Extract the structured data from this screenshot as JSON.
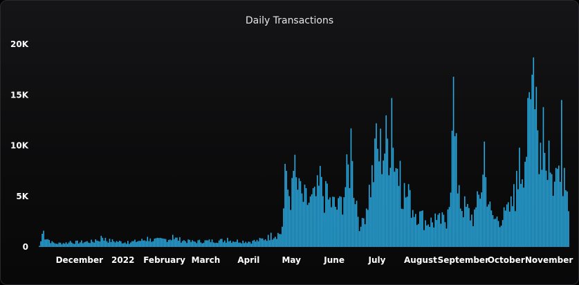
{
  "chart_data": {
    "type": "bar",
    "title": "Daily Transactions",
    "xlabel": "",
    "ylabel": "",
    "ylim": [
      0,
      20000
    ],
    "grid": false,
    "legend": "none",
    "bar_color": "#29a9e0",
    "y_ticks": [
      {
        "value": 0,
        "label": "0"
      },
      {
        "value": 5000,
        "label": "5K"
      },
      {
        "value": 10000,
        "label": "10K"
      },
      {
        "value": 15000,
        "label": "15K"
      },
      {
        "value": 20000,
        "label": "20K"
      }
    ],
    "x_ticks": [
      "December",
      "2022",
      "February",
      "March",
      "April",
      "May",
      "June",
      "July",
      "August",
      "September",
      "October",
      "November"
    ],
    "x_start": "2021-11-18",
    "x_end": "2022-11-30",
    "series": [
      {
        "points": [
          [
            "2021-11-20",
            1300
          ],
          [
            "2021-11-21",
            1600
          ],
          [
            "2021-11-28",
            450
          ],
          [
            "2021-12-10",
            600
          ],
          [
            "2021-12-28",
            750
          ],
          [
            "2022-01-01",
            1100
          ],
          [
            "2022-01-04",
            900
          ],
          [
            "2022-01-20",
            600
          ],
          [
            "2022-02-03",
            1000
          ],
          [
            "2022-02-12",
            900
          ],
          [
            "2022-02-21",
            1200
          ],
          [
            "2022-03-05",
            700
          ],
          [
            "2022-04-01",
            900
          ],
          [
            "2022-04-20",
            700
          ],
          [
            "2022-05-02",
            1400
          ],
          [
            "2022-05-10",
            2000
          ],
          [
            "2022-05-12",
            8200
          ],
          [
            "2022-05-17",
            6800
          ],
          [
            "2022-05-19",
            9100
          ],
          [
            "2022-05-23",
            6500
          ],
          [
            "2022-06-01",
            5800
          ],
          [
            "2022-06-06",
            8000
          ],
          [
            "2022-06-10",
            6500
          ],
          [
            "2022-06-20",
            5000
          ],
          [
            "2022-06-28",
            11700
          ],
          [
            "2022-07-05",
            2000
          ],
          [
            "2022-07-16",
            12200
          ],
          [
            "2022-07-27",
            14700
          ],
          [
            "2022-08-02",
            8500
          ],
          [
            "2022-08-08",
            6200
          ],
          [
            "2022-08-18",
            3600
          ],
          [
            "2022-08-27",
            3300
          ],
          [
            "2022-09-05",
            3700
          ],
          [
            "2022-09-09",
            16800
          ],
          [
            "2022-09-13",
            6100
          ],
          [
            "2022-09-24",
            3700
          ],
          [
            "2022-10-01",
            10400
          ],
          [
            "2022-10-06",
            3600
          ],
          [
            "2022-10-17",
            4200
          ],
          [
            "2022-10-22",
            6200
          ],
          [
            "2022-10-26",
            9800
          ],
          [
            "2022-11-01",
            14700
          ],
          [
            "2022-11-04",
            17000
          ],
          [
            "2022-11-05",
            18700
          ],
          [
            "2022-11-07",
            15800
          ],
          [
            "2022-11-12",
            13800
          ],
          [
            "2022-11-16",
            10500
          ],
          [
            "2022-11-21",
            7800
          ],
          [
            "2022-11-25",
            14500
          ],
          [
            "2022-11-27",
            7800
          ]
        ]
      }
    ]
  }
}
